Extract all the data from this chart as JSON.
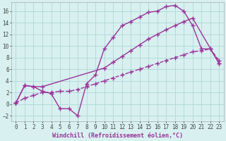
{
  "background_color": "#d8f0f0",
  "grid_color": "#b0d8d8",
  "line_color": "#993399",
  "xlabel": "Windchill (Refroidissement éolien,°C)",
  "xlim": [
    -0.5,
    23.5
  ],
  "ylim": [
    -3,
    17.5
  ],
  "xticks": [
    0,
    1,
    2,
    3,
    4,
    5,
    6,
    7,
    8,
    9,
    10,
    11,
    12,
    13,
    14,
    15,
    16,
    17,
    18,
    19,
    20,
    21,
    22,
    23
  ],
  "yticks": [
    -2,
    0,
    2,
    4,
    6,
    8,
    10,
    12,
    14,
    16
  ],
  "line1_x": [
    0,
    1,
    2,
    3,
    4,
    5,
    6,
    7,
    8,
    9,
    10,
    11,
    12,
    13,
    14,
    15,
    16,
    17,
    18,
    19,
    20,
    21,
    22,
    23
  ],
  "line1_y": [
    0.2,
    3.2,
    3.0,
    2.2,
    1.8,
    -0.8,
    -0.8,
    -2.0,
    3.5,
    5.0,
    9.5,
    11.5,
    13.5,
    14.2,
    15.0,
    15.8,
    16.0,
    16.8,
    17.0,
    16.0,
    13.5,
    9.5,
    9.5,
    7.0
  ],
  "line2_x": [
    0,
    1,
    2,
    3,
    10,
    11,
    12,
    13,
    14,
    15,
    16,
    17,
    18,
    19,
    20,
    23
  ],
  "line2_y": [
    0.2,
    3.2,
    3.0,
    3.0,
    6.2,
    7.2,
    8.2,
    9.2,
    10.2,
    11.2,
    12.0,
    12.8,
    13.5,
    14.2,
    14.8,
    7.0
  ],
  "line3_x": [
    0,
    1,
    2,
    3,
    4,
    5,
    6,
    7,
    8,
    9,
    10,
    11,
    12,
    13,
    14,
    15,
    16,
    17,
    18,
    19,
    20,
    21,
    22,
    23
  ],
  "line3_y": [
    0.2,
    1.0,
    1.5,
    2.0,
    2.0,
    2.2,
    2.2,
    2.5,
    3.0,
    3.5,
    4.0,
    4.5,
    5.0,
    5.5,
    6.0,
    6.5,
    7.0,
    7.5,
    8.0,
    8.5,
    9.0,
    9.2,
    9.5,
    7.5
  ],
  "marker": "+",
  "markersize": 4,
  "linewidth": 1.0,
  "xlabel_fontsize": 6,
  "tick_fontsize": 5.5
}
